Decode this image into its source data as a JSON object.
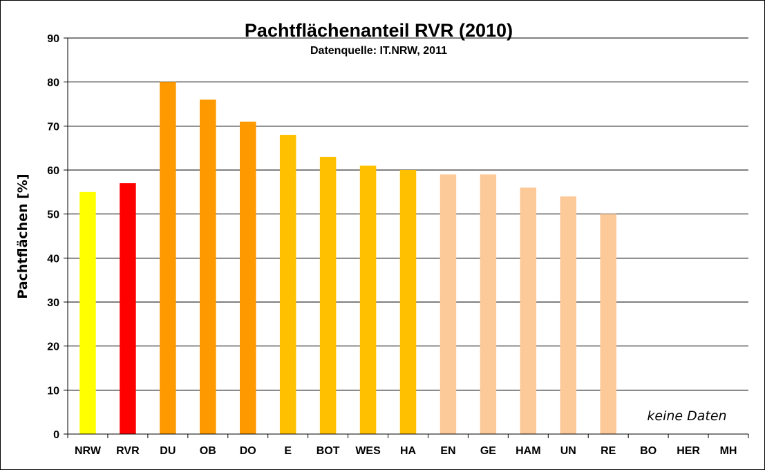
{
  "chart_data": {
    "type": "bar",
    "title": "Pachtflächenanteil RVR (2010)",
    "subtitle": "Datenquelle: IT.NRW, 2011",
    "xlabel": "",
    "ylabel": "Pachtflächen [%]",
    "ylim": [
      0,
      90
    ],
    "yticks": [
      0,
      10,
      20,
      30,
      40,
      50,
      60,
      70,
      80,
      90
    ],
    "grid": true,
    "legend": "none",
    "categories": [
      "NRW",
      "RVR",
      "DU",
      "OB",
      "DO",
      "E",
      "BOT",
      "WES",
      "HA",
      "EN",
      "GE",
      "HAM",
      "UN",
      "RE",
      "BO",
      "HER",
      "MH"
    ],
    "values": [
      55,
      57,
      80,
      76,
      71,
      68,
      63,
      61,
      60,
      59,
      59,
      56,
      54,
      50,
      null,
      null,
      null
    ],
    "colors": [
      "#ffff00",
      "#ff0000",
      "#ff9900",
      "#ff9900",
      "#ff9900",
      "#ffc000",
      "#ffc000",
      "#ffc000",
      "#ffc000",
      "#fcc999",
      "#fcc999",
      "#fcc999",
      "#fcc999",
      "#fcc999",
      null,
      null,
      null
    ],
    "annotation": "keine Daten"
  }
}
